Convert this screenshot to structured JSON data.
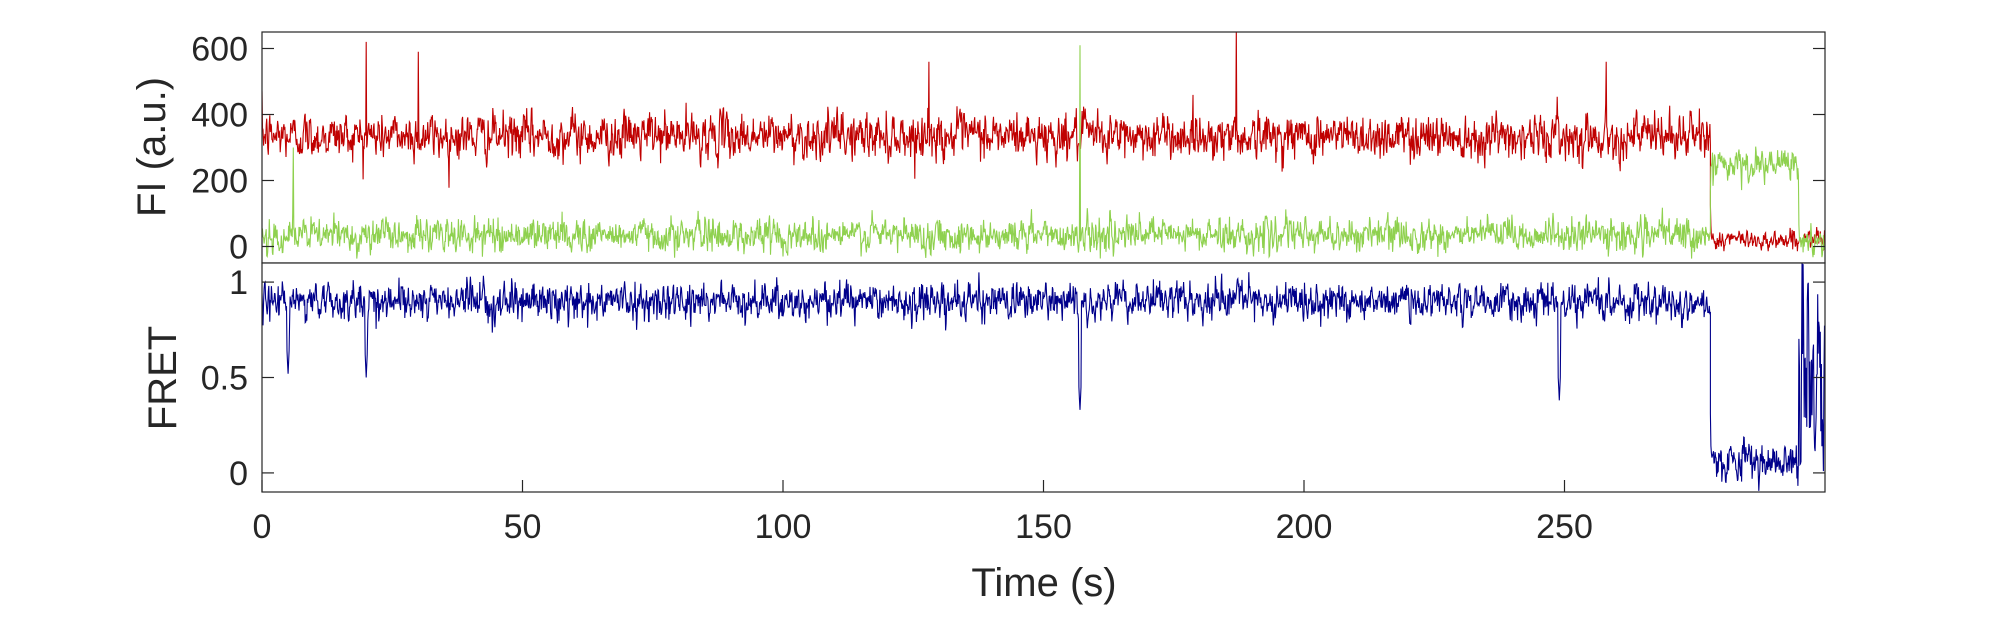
{
  "chart_data": [
    {
      "type": "line",
      "panel": "top",
      "ylabel": "FI (a.u.)",
      "xlim": [
        0,
        300
      ],
      "ylim": [
        -50,
        650
      ],
      "y_ticks": [
        "0",
        "200",
        "400",
        "600"
      ],
      "y_tick_values": [
        0,
        200,
        400,
        600
      ],
      "series": [
        {
          "role": "acceptor",
          "color": "#c00000",
          "segments": [
            {
              "t_start": 0,
              "t_end": 278,
              "mean": 335,
              "noise": 65
            },
            {
              "t_start": 278,
              "t_end": 300,
              "mean": 20,
              "noise": 28
            }
          ],
          "spikes": [
            [
              20,
              620
            ],
            [
              30,
              590
            ],
            [
              128,
              560
            ],
            [
              187,
              665
            ],
            [
              258,
              560
            ]
          ]
        },
        {
          "role": "donor",
          "color": "#8fd14f",
          "segments": [
            {
              "t_start": 0,
              "t_end": 278,
              "mean": 35,
              "noise": 48
            },
            {
              "t_start": 278,
              "t_end": 295,
              "mean": 245,
              "noise": 45
            },
            {
              "t_start": 295,
              "t_end": 300,
              "mean": 10,
              "noise": 40
            }
          ],
          "spikes": [
            [
              157,
              610
            ],
            [
              6,
              300
            ]
          ]
        }
      ]
    },
    {
      "type": "line",
      "panel": "bottom",
      "ylabel": "FRET",
      "xlabel": "Time (s)",
      "xlim": [
        0,
        300
      ],
      "ylim": [
        -0.1,
        1.1
      ],
      "y_ticks": [
        "0",
        "0.5",
        "1"
      ],
      "y_tick_values": [
        0,
        0.5,
        1
      ],
      "x_ticks": [
        "0",
        "50",
        "100",
        "150",
        "200",
        "250"
      ],
      "x_tick_values": [
        0,
        50,
        100,
        150,
        200,
        250
      ],
      "series": [
        {
          "role": "fret",
          "color": "#00008b",
          "segments": [
            {
              "t_start": 0,
              "t_end": 278,
              "mean": 0.9,
              "noise": 0.09
            },
            {
              "t_start": 278,
              "t_end": 295,
              "mean": 0.06,
              "noise": 0.09
            },
            {
              "t_start": 295,
              "t_end": 300,
              "mean": 0.5,
              "noise": 0.6
            }
          ],
          "dips": [
            [
              157,
              0.33
            ],
            [
              249,
              0.38
            ],
            [
              5,
              0.52
            ],
            [
              20,
              0.5
            ]
          ]
        }
      ]
    }
  ]
}
